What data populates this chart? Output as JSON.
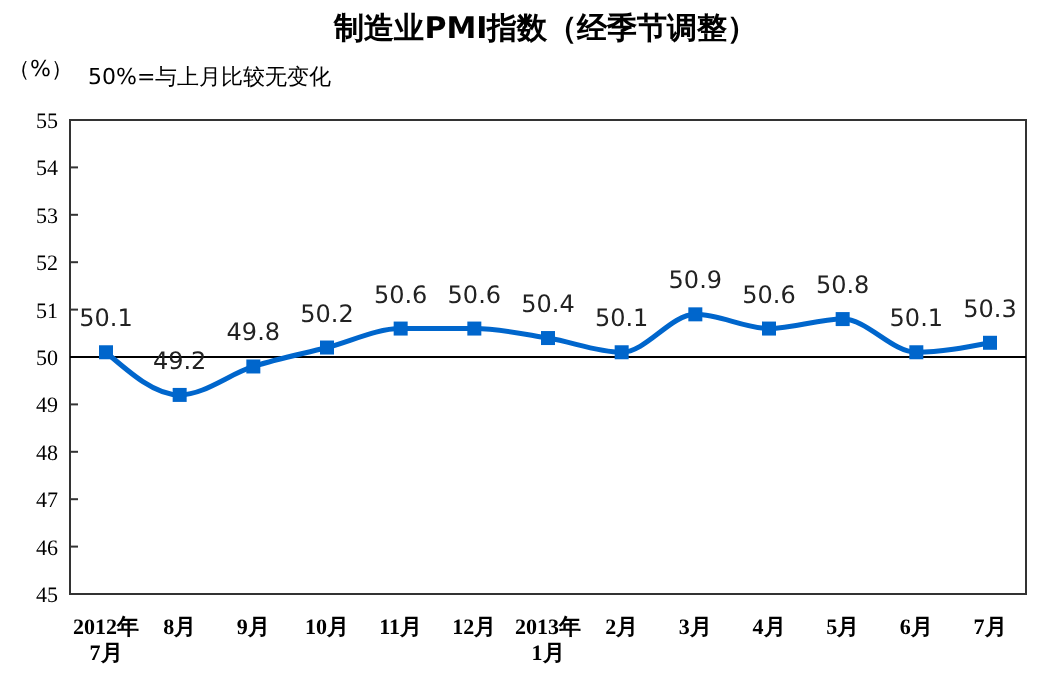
{
  "chart_data": {
    "type": "line",
    "title": "制造业PMI指数（经季节调整）",
    "ylabel": "（%）",
    "annotations": [
      "50%=与上月比较无变化"
    ],
    "categories": [
      "2012年\n7月",
      "8月",
      "9月",
      "10月",
      "11月",
      "12月",
      "2013年\n1月",
      "2月",
      "3月",
      "4月",
      "5月",
      "6月",
      "7月"
    ],
    "series": [
      {
        "color": "#0066cc",
        "values": [
          50.1,
          49.2,
          49.8,
          50.2,
          50.6,
          50.6,
          50.4,
          50.1,
          50.9,
          50.6,
          50.8,
          50.1,
          50.3
        ]
      }
    ],
    "ylim": [
      45,
      55
    ],
    "yticks": [
      45,
      46,
      47,
      48,
      49,
      50,
      51,
      52,
      53,
      54,
      55
    ],
    "ref_lines": [
      {
        "axis": "y",
        "value": 50,
        "color": "#000000"
      }
    ],
    "data_labels": true,
    "marker": "square",
    "grid": false
  }
}
